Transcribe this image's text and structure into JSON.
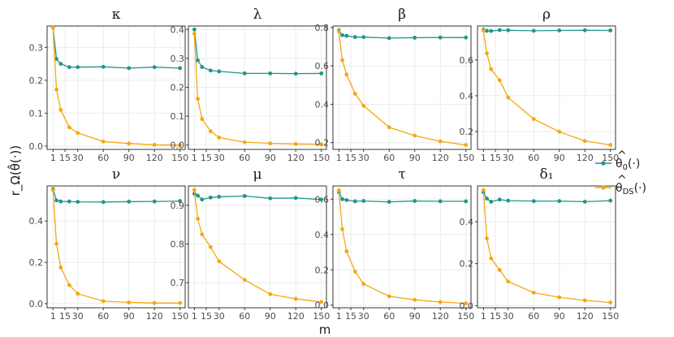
{
  "chart_data": {
    "type": "line",
    "xlabel": "m",
    "ylabel": "r_Ω(θ̂(·))",
    "x": [
      1,
      5,
      10,
      20,
      30,
      60,
      90,
      120,
      150
    ],
    "xticks": [
      1,
      15,
      30,
      60,
      90,
      120,
      150
    ],
    "series_names": [
      "θ̂0(·)",
      "θ̂DS(·)"
    ],
    "colors": {
      "theta0": "#1f968b",
      "thetaDS": "#f5a70f"
    },
    "legend": {
      "title": "",
      "entries": [
        {
          "key": "theta0",
          "base": "θ",
          "sub": "0",
          "tail": "(·)"
        },
        {
          "key": "thetaDS",
          "base": "θ",
          "sub": "DS",
          "tail": "(·)"
        }
      ]
    },
    "panels": [
      {
        "name": "panel-kappa",
        "title": "κ",
        "ylim": [
          -0.01,
          0.365
        ],
        "yticks": [
          "0.0",
          "0.1",
          "0.2",
          "0.3"
        ],
        "series": [
          {
            "key": "theta0",
            "values": [
              0.36,
              0.265,
              0.25,
              0.24,
              0.24,
              0.241,
              0.237,
              0.24,
              0.237
            ]
          },
          {
            "key": "thetaDS",
            "values": [
              0.36,
              0.172,
              0.11,
              0.057,
              0.04,
              0.014,
              0.008,
              0.004,
              0.003
            ]
          }
        ]
      },
      {
        "name": "panel-lambda",
        "title": "λ",
        "ylim": [
          -0.015,
          0.412
        ],
        "yticks": [
          "0.0",
          "0.1",
          "0.2",
          "0.3",
          "0.4"
        ],
        "series": [
          {
            "key": "theta0",
            "values": [
              0.4,
              0.293,
              0.27,
              0.258,
              0.255,
              0.248,
              0.248,
              0.247,
              0.248
            ]
          },
          {
            "key": "thetaDS",
            "values": [
              0.385,
              0.16,
              0.09,
              0.048,
              0.026,
              0.01,
              0.006,
              0.004,
              0.003
            ]
          }
        ]
      },
      {
        "name": "panel-beta",
        "title": "β",
        "ylim": [
          0.165,
          0.808
        ],
        "yticks": [
          "0.2",
          "0.4",
          "0.6",
          "0.8"
        ],
        "series": [
          {
            "key": "theta0",
            "values": [
              0.785,
              0.76,
              0.757,
              0.75,
              0.75,
              0.745,
              0.747,
              0.748,
              0.748
            ]
          },
          {
            "key": "thetaDS",
            "values": [
              0.78,
              0.63,
              0.555,
              0.455,
              0.392,
              0.28,
              0.237,
              0.207,
              0.188
            ]
          }
        ]
      },
      {
        "name": "panel-rho",
        "title": "ρ",
        "ylim": [
          0.1,
          0.79
        ],
        "yticks": [
          "0.2",
          "0.4",
          "0.6"
        ],
        "series": [
          {
            "key": "theta0",
            "values": [
              0.77,
              0.763,
              0.762,
              0.767,
              0.766,
              0.763,
              0.765,
              0.766,
              0.765
            ]
          },
          {
            "key": "thetaDS",
            "values": [
              0.765,
              0.637,
              0.548,
              0.487,
              0.39,
              0.27,
              0.199,
              0.147,
              0.125
            ]
          }
        ]
      },
      {
        "name": "panel-nu",
        "title": "ν",
        "ylim": [
          -0.02,
          0.57
        ],
        "yticks": [
          "0.0",
          "0.2",
          "0.4"
        ],
        "series": [
          {
            "key": "theta0",
            "values": [
              0.555,
              0.5,
              0.495,
              0.495,
              0.493,
              0.492,
              0.494,
              0.495,
              0.497
            ]
          },
          {
            "key": "thetaDS",
            "values": [
              0.55,
              0.29,
              0.175,
              0.09,
              0.048,
              0.012,
              0.006,
              0.003,
              0.003
            ]
          }
        ]
      },
      {
        "name": "panel-mu",
        "title": "μ",
        "ylim": [
          0.635,
          0.95
        ],
        "yticks": [
          "0.7",
          "0.8",
          "0.9"
        ],
        "series": [
          {
            "key": "theta0",
            "values": [
              0.93,
              0.925,
              0.915,
              0.92,
              0.922,
              0.924,
              0.918,
              0.919,
              0.915
            ]
          },
          {
            "key": "thetaDS",
            "values": [
              0.94,
              0.865,
              0.825,
              0.792,
              0.755,
              0.707,
              0.67,
              0.658,
              0.65
            ]
          }
        ]
      },
      {
        "name": "panel-tau",
        "title": "τ",
        "ylim": [
          -0.015,
          0.675
        ],
        "yticks": [
          "0.0",
          "0.2",
          "0.4",
          "0.6"
        ],
        "series": [
          {
            "key": "theta0",
            "values": [
              0.64,
              0.6,
              0.595,
              0.588,
              0.59,
              0.585,
              0.59,
              0.588,
              0.588
            ]
          },
          {
            "key": "thetaDS",
            "values": [
              0.65,
              0.43,
              0.305,
              0.19,
              0.12,
              0.05,
              0.03,
              0.017,
              0.01
            ]
          }
        ]
      },
      {
        "name": "panel-delta1",
        "title": "δ₁",
        "ylim": [
          -0.01,
          0.57
        ],
        "yticks": [
          "0.0",
          "0.2",
          "0.4"
        ],
        "series": [
          {
            "key": "theta0",
            "values": [
              0.54,
              0.51,
              0.495,
              0.505,
              0.5,
              0.498,
              0.498,
              0.495,
              0.5
            ]
          },
          {
            "key": "thetaDS",
            "values": [
              0.55,
              0.32,
              0.225,
              0.17,
              0.115,
              0.062,
              0.04,
              0.025,
              0.015
            ]
          }
        ]
      }
    ]
  }
}
